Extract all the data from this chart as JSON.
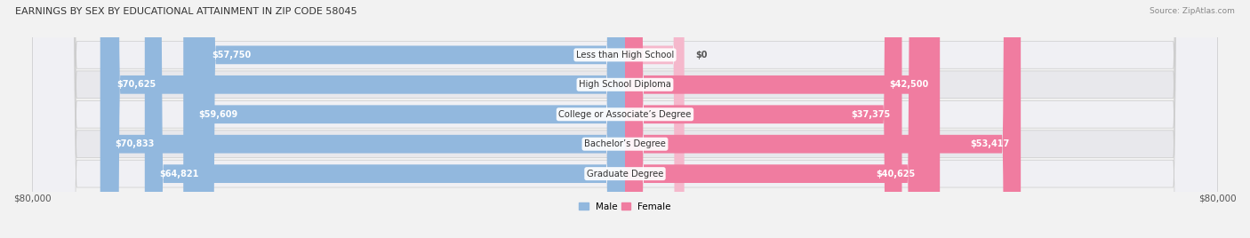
{
  "title": "EARNINGS BY SEX BY EDUCATIONAL ATTAINMENT IN ZIP CODE 58045",
  "source": "Source: ZipAtlas.com",
  "categories": [
    "Less than High School",
    "High School Diploma",
    "College or Associate’s Degree",
    "Bachelor’s Degree",
    "Graduate Degree"
  ],
  "male_values": [
    57750,
    70625,
    59609,
    70833,
    64821
  ],
  "female_values": [
    0,
    42500,
    37375,
    53417,
    40625
  ],
  "max_value": 80000,
  "male_color": "#92b8de",
  "female_color": "#f07ca0",
  "background_color": "#f2f2f2",
  "row_bg_color": "#e8e8ec",
  "row_bg_light": "#f0f0f4",
  "xlabel_left": "$80,000",
  "xlabel_right": "$80,000",
  "bar_height": 0.62,
  "legend_male_color": "#92b8de",
  "legend_female_color": "#f07ca0",
  "female_stub_value": 8000,
  "label_fontsize": 7.0,
  "cat_fontsize": 7.2
}
